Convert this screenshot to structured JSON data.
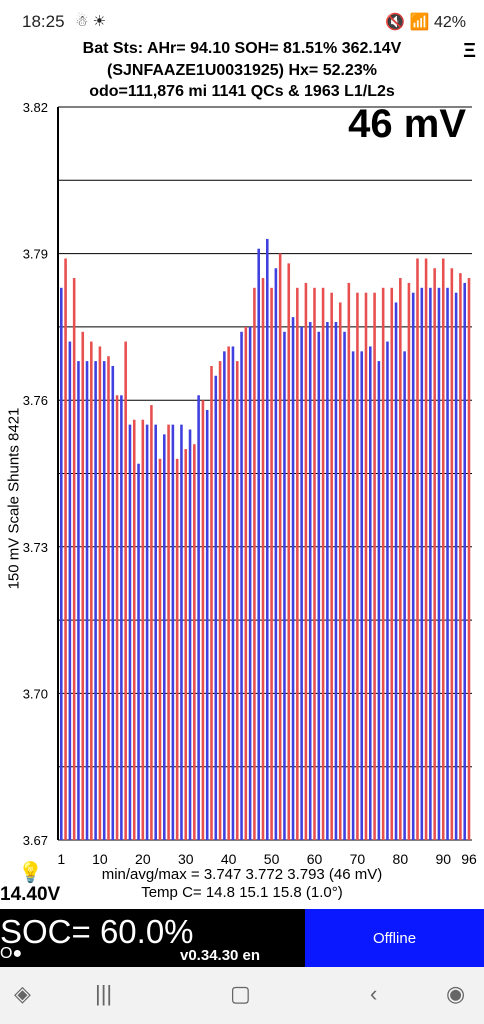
{
  "status_bar": {
    "time": "18:25",
    "left_icons": "☃ ☀",
    "right_text": "🔇 📶 42%",
    "battery": "42%"
  },
  "header": {
    "line1": "Bat Sts:  AHr= 94.10  SOH= 81.51%   362.14V",
    "line2": "(SJNFAAZE1U0031925)   Hx= 52.23%",
    "line3": "odo=111,876 mi  1141 QCs & 1963 L1/L2s",
    "menu_icon": "Ξ"
  },
  "spread_label": "46 mV",
  "y_axis_label": "150 mV Scale   Shunts 8421",
  "stats": {
    "minmax": "min/avg/max = 3.747 3.772 3.793  (46 mV)",
    "temp": "Temp C= 14.8  15.1  15.8  (1.0°)"
  },
  "pack_voltage": "14.40V",
  "soc": {
    "text": "SOC= 60.0%",
    "dots": "O●",
    "version": "v0.34.30 en"
  },
  "connection_button": "Offline",
  "colors": {
    "blue": "#4040e0",
    "red": "#e85050"
  },
  "chart_data": {
    "type": "bar",
    "ylim": [
      3.67,
      3.82
    ],
    "yticks": [
      "3.82",
      "3.79",
      "3.76",
      "3.73",
      "3.70",
      "3.67"
    ],
    "xticks": [
      "1",
      "10",
      "20",
      "30",
      "40",
      "50",
      "60",
      "70",
      "80",
      "90",
      "96"
    ],
    "values": [
      3.783,
      3.789,
      3.772,
      3.785,
      3.768,
      3.774,
      3.768,
      3.772,
      3.768,
      3.771,
      3.768,
      3.769,
      3.767,
      3.761,
      3.761,
      3.772,
      3.755,
      3.756,
      3.747,
      3.756,
      3.755,
      3.759,
      3.755,
      3.748,
      3.753,
      3.755,
      3.755,
      3.748,
      3.755,
      3.75,
      3.754,
      3.751,
      3.761,
      3.76,
      3.758,
      3.767,
      3.765,
      3.768,
      3.77,
      3.771,
      3.771,
      3.768,
      3.774,
      3.775,
      3.775,
      3.783,
      3.791,
      3.785,
      3.793,
      3.783,
      3.787,
      3.79,
      3.774,
      3.788,
      3.777,
      3.783,
      3.775,
      3.784,
      3.776,
      3.783,
      3.774,
      3.783,
      3.776,
      3.782,
      3.776,
      3.78,
      3.774,
      3.784,
      3.77,
      3.782,
      3.77,
      3.782,
      3.771,
      3.782,
      3.768,
      3.783,
      3.772,
      3.783,
      3.78,
      3.785,
      3.77,
      3.784,
      3.782,
      3.789,
      3.783,
      3.789,
      3.783,
      3.787,
      3.783,
      3.789,
      3.783,
      3.787,
      3.782,
      3.786,
      3.784,
      3.785
    ]
  }
}
